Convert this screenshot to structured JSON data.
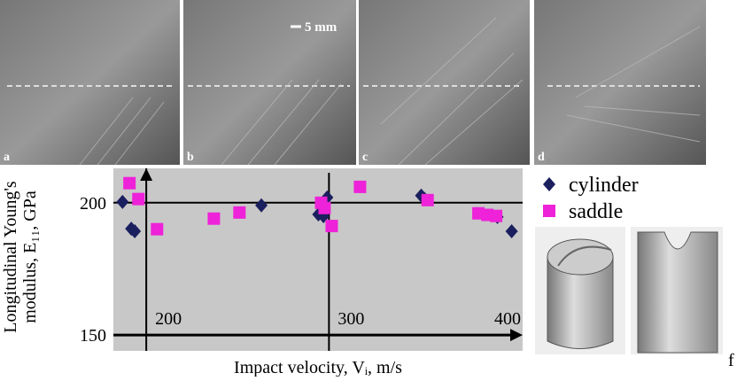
{
  "photos": {
    "labels": [
      "a",
      "b",
      "c",
      "d"
    ],
    "scale": "5 mm"
  },
  "models_label": "f",
  "chart_data": {
    "type": "scatter",
    "xlabel": "Impact velocity, Vᵢ, m/s",
    "ylabel": [
      "Longitudinal Young's",
      "modulus, E₁₁, GPa"
    ],
    "xlim": [
      182,
      406
    ],
    "ylim": [
      144,
      213
    ],
    "xticks": [
      200,
      300,
      400
    ],
    "yticks": [
      150,
      200
    ],
    "series": [
      {
        "name": "cylinder",
        "color": "#1a1f5e",
        "marker": "diamond",
        "x": [
          187,
          191.8,
          193.7,
          263,
          294.2,
          297,
          299,
          350.5,
          352.4,
          392.2,
          400
        ],
        "values": [
          200.3,
          190.2,
          189.2,
          199,
          195.6,
          194.9,
          202,
          202.7,
          201.4,
          194.6,
          189.2
        ]
      },
      {
        "name": "saddle",
        "color": "#ee22d8",
        "marker": "square",
        "x": [
          190.8,
          195.7,
          205.9,
          237,
          251,
          295.7,
          297.6,
          301.5,
          317,
          354,
          381.8,
          386.7,
          391.5
        ],
        "values": [
          207.4,
          201.4,
          190,
          194,
          196.3,
          200,
          198,
          191.2,
          206,
          201,
          196,
          195.4,
          195
        ]
      }
    ]
  }
}
